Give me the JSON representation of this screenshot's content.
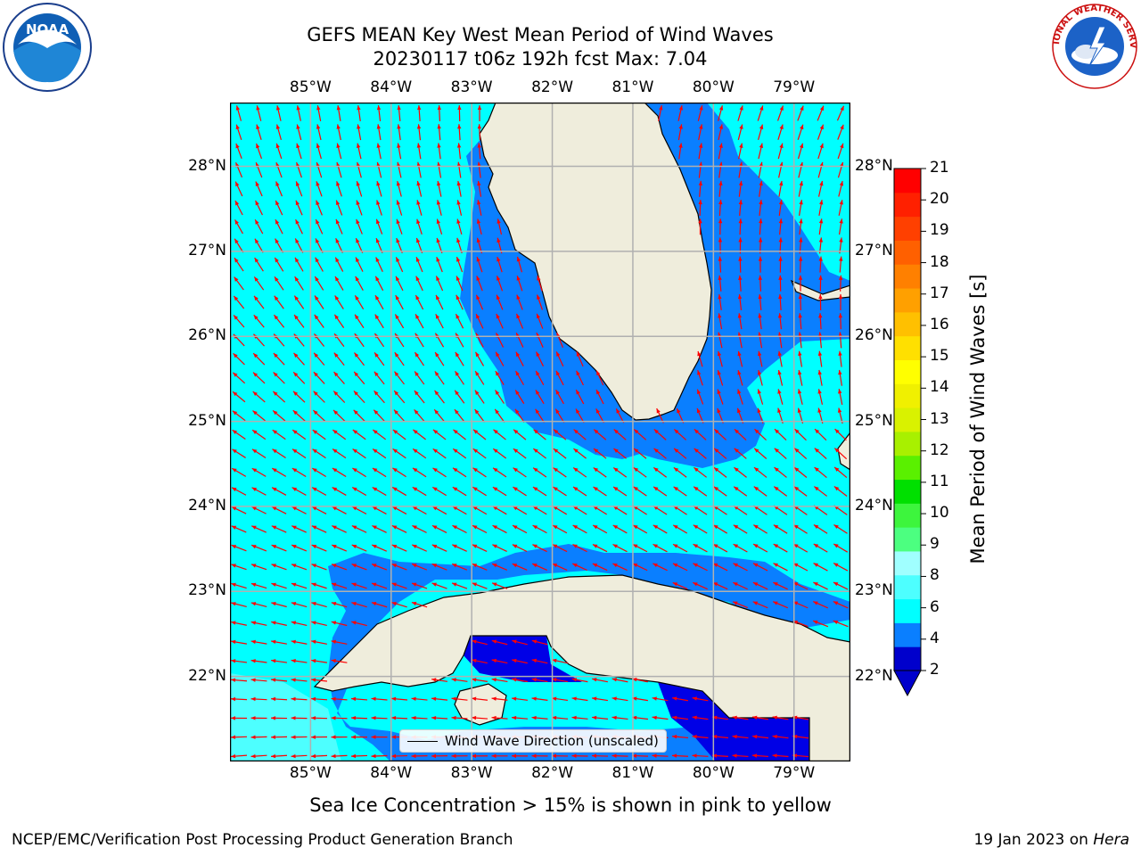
{
  "title": {
    "line1": "GEFS MEAN Key West Mean Period of Wind Waves",
    "line2": "20230117 t06z 192h fcst   Max: 7.04"
  },
  "logos": {
    "left": {
      "name": "noaa-logo",
      "text": "NOAA",
      "ring_text": "NATIONAL OCEANIC AND ATMOSPHERIC ADMINISTRATION · U.S. DEPARTMENT OF COMMERCE"
    },
    "right": {
      "name": "nws-logo",
      "ring_text": "NATIONAL WEATHER SERVICE"
    }
  },
  "map": {
    "lon_ticks": [
      "85°W",
      "84°W",
      "83°W",
      "82°W",
      "81°W",
      "80°W",
      "79°W"
    ],
    "lat_ticks": [
      "28°N",
      "27°N",
      "26°N",
      "25°N",
      "24°N",
      "23°N",
      "22°N"
    ],
    "lon_range": [
      -86.0,
      -78.3
    ],
    "lat_range": [
      21.0,
      28.75
    ],
    "grid": true,
    "colors": {
      "land": "#efeddc",
      "cyan": "#00ffff",
      "blue": "#0a7fff",
      "navy": "#0000e6",
      "arrow": "#ff0000",
      "grid": "#b0b0b0"
    }
  },
  "legend": {
    "label": "Wind Wave Direction (unscaled)"
  },
  "colorbar": {
    "label": "Mean Period of Wind Waves [s]",
    "ticks": [
      "21",
      "20",
      "19",
      "18",
      "17",
      "16",
      "15",
      "14",
      "13",
      "12",
      "11",
      "10",
      "9",
      "8",
      "6",
      "4",
      "2"
    ],
    "colors_bottom_to_top": [
      "#0000cc",
      "#0a7fff",
      "#00ffff",
      "#4dffff",
      "#a0ffff",
      "#4cff80",
      "#3df53d",
      "#00e000",
      "#5af000",
      "#a8f000",
      "#d9f200",
      "#f0f000",
      "#ffff00",
      "#ffe000",
      "#ffc000",
      "#ffa000",
      "#ff8000",
      "#ff6000",
      "#ff4000",
      "#ff2000",
      "#ff0000"
    ]
  },
  "chart_data": {
    "type": "heatmap",
    "title": "GEFS MEAN Key West Mean Period of Wind Waves",
    "subtitle": "20230117 t06z 192h fcst   Max: 7.04",
    "variable": "Mean Period of Wind Waves [s]",
    "max": 7.04,
    "xlim": [
      -86.0,
      -78.3
    ],
    "ylim": [
      21.0,
      28.75
    ],
    "colorbar_levels": [
      2,
      4,
      6,
      8,
      9,
      10,
      11,
      12,
      13,
      14,
      15,
      16,
      17,
      18,
      19,
      20,
      21
    ],
    "grid": true,
    "legend": [
      "Wind Wave Direction (unscaled)"
    ]
  },
  "footer": {
    "note": "Sea Ice Concentration > 15% is shown in pink to yellow",
    "left": "NCEP/EMC/Verification Post Processing Product Generation Branch",
    "right_date": "19 Jan 2023 on ",
    "right_machine": "Hera"
  }
}
